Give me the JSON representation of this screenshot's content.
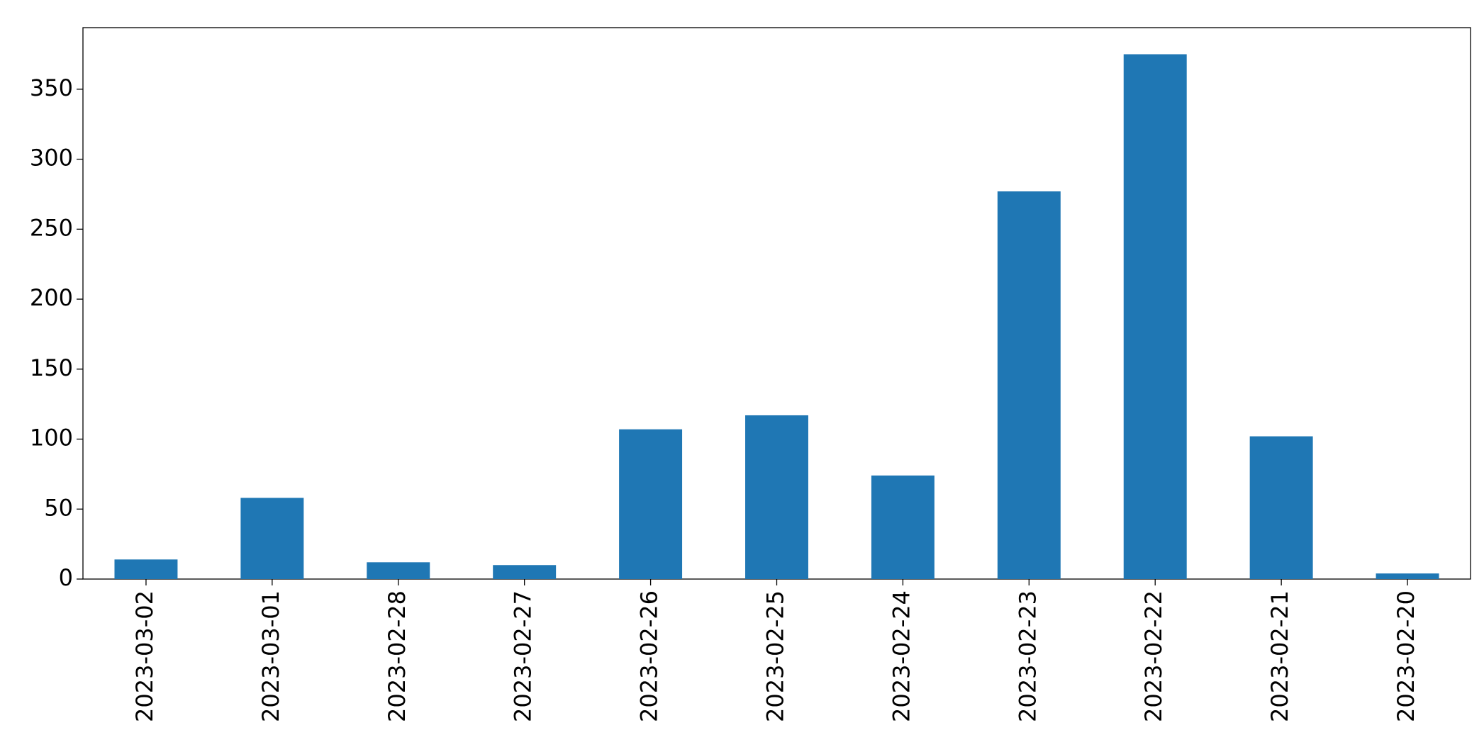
{
  "chart_data": {
    "type": "bar",
    "categories": [
      "2023-03-02",
      "2023-03-01",
      "2023-02-28",
      "2023-02-27",
      "2023-02-26",
      "2023-02-25",
      "2023-02-24",
      "2023-02-23",
      "2023-02-22",
      "2023-02-21",
      "2023-02-20"
    ],
    "values": [
      14,
      58,
      12,
      10,
      107,
      117,
      74,
      277,
      375,
      102,
      4
    ],
    "color": "#1f77b4",
    "ylim": [
      0,
      394
    ],
    "yticks": [
      0,
      50,
      100,
      150,
      200,
      250,
      300,
      350
    ],
    "grid": false
  }
}
